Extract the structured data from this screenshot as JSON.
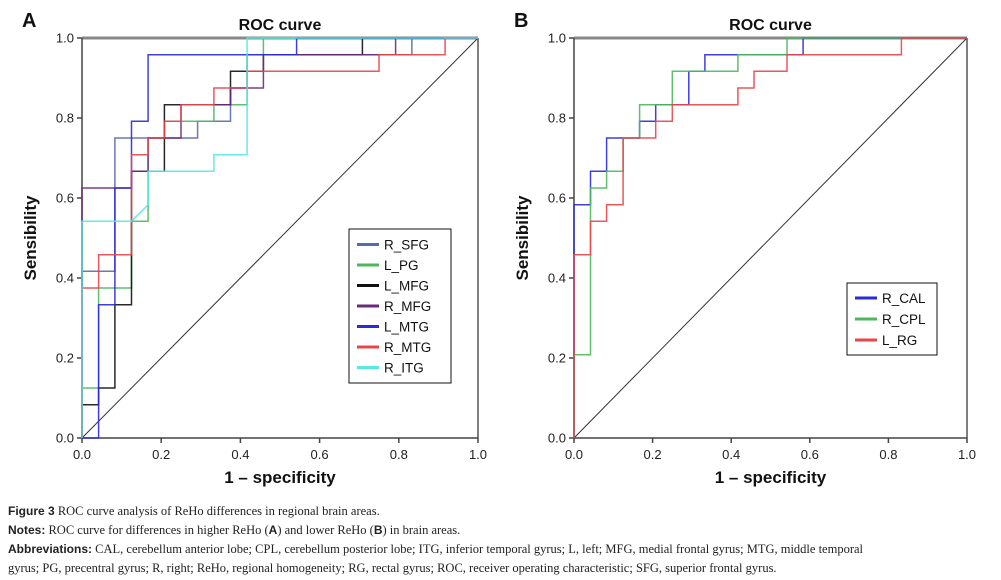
{
  "chart_data": [
    {
      "panel_label": "A",
      "type": "line",
      "title": "ROC curve",
      "xlabel": "1 – specificity",
      "ylabel": "Sensibility",
      "xlim": [
        0,
        1
      ],
      "ylim": [
        0,
        1
      ],
      "xticks": [
        "0.0",
        "0.2",
        "0.4",
        "0.6",
        "0.8",
        "1.0"
      ],
      "yticks": [
        "0.0",
        "0.2",
        "0.4",
        "0.6",
        "0.8",
        "1.0"
      ],
      "grid": false,
      "legend_position": "center-right",
      "reference_line": {
        "x": [
          0,
          1
        ],
        "y": [
          0,
          1
        ],
        "color": "#333333"
      },
      "series": [
        {
          "name": "R_SFG",
          "color": "#5b6aa8",
          "points": [
            [
              0,
              0
            ],
            [
              0,
              0.417
            ],
            [
              0.083,
              0.417
            ],
            [
              0.083,
              0.75
            ],
            [
              0.208,
              0.75
            ],
            [
              0.208,
              0.75
            ],
            [
              0.292,
              0.75
            ],
            [
              0.292,
              0.792
            ],
            [
              0.375,
              0.792
            ],
            [
              0.375,
              0.875
            ],
            [
              0.417,
              0.875
            ],
            [
              0.417,
              0.958
            ],
            [
              0.833,
              0.958
            ],
            [
              0.833,
              1
            ],
            [
              1,
              1
            ]
          ]
        },
        {
          "name": "L_PG",
          "color": "#4cb85c",
          "points": [
            [
              0,
              0
            ],
            [
              0,
              0.125
            ],
            [
              0.042,
              0.125
            ],
            [
              0.042,
              0.375
            ],
            [
              0.125,
              0.375
            ],
            [
              0.125,
              0.542
            ],
            [
              0.167,
              0.542
            ],
            [
              0.167,
              0.75
            ],
            [
              0.208,
              0.75
            ],
            [
              0.208,
              0.792
            ],
            [
              0.333,
              0.792
            ],
            [
              0.333,
              0.833
            ],
            [
              0.417,
              0.833
            ],
            [
              0.417,
              0.958
            ],
            [
              0.458,
              0.958
            ],
            [
              0.458,
              1
            ],
            [
              1,
              1
            ]
          ]
        },
        {
          "name": "L_MFG",
          "color": "#111111",
          "points": [
            [
              0,
              0
            ],
            [
              0,
              0.083
            ],
            [
              0.042,
              0.083
            ],
            [
              0.042,
              0.125
            ],
            [
              0.083,
              0.125
            ],
            [
              0.083,
              0.333
            ],
            [
              0.125,
              0.333
            ],
            [
              0.125,
              0.667
            ],
            [
              0.208,
              0.667
            ],
            [
              0.208,
              0.833
            ],
            [
              0.25,
              0.833
            ],
            [
              0.25,
              0.833
            ],
            [
              0.375,
              0.833
            ],
            [
              0.375,
              0.917
            ],
            [
              0.458,
              0.917
            ],
            [
              0.458,
              0.958
            ],
            [
              0.708,
              0.958
            ],
            [
              0.708,
              1
            ],
            [
              1,
              1
            ]
          ]
        },
        {
          "name": "R_MFG",
          "color": "#6a2a7a",
          "points": [
            [
              0,
              0
            ],
            [
              0,
              0.625
            ],
            [
              0.125,
              0.625
            ],
            [
              0.125,
              0.667
            ],
            [
              0.167,
              0.667
            ],
            [
              0.167,
              0.75
            ],
            [
              0.25,
              0.75
            ],
            [
              0.25,
              0.833
            ],
            [
              0.375,
              0.833
            ],
            [
              0.375,
              0.875
            ],
            [
              0.458,
              0.875
            ],
            [
              0.458,
              0.958
            ],
            [
              0.792,
              0.958
            ],
            [
              0.792,
              1
            ],
            [
              1,
              1
            ]
          ]
        },
        {
          "name": "L_MTG",
          "color": "#2a2ad8",
          "points": [
            [
              0,
              0
            ],
            [
              0.042,
              0
            ],
            [
              0.042,
              0.333
            ],
            [
              0.083,
              0.333
            ],
            [
              0.083,
              0.625
            ],
            [
              0.125,
              0.625
            ],
            [
              0.125,
              0.792
            ],
            [
              0.167,
              0.792
            ],
            [
              0.167,
              0.958
            ],
            [
              0.542,
              0.958
            ],
            [
              0.542,
              1
            ],
            [
              1,
              1
            ]
          ]
        },
        {
          "name": "R_MTG",
          "color": "#e8454a",
          "points": [
            [
              0,
              0
            ],
            [
              0,
              0.375
            ],
            [
              0.042,
              0.375
            ],
            [
              0.042,
              0.458
            ],
            [
              0.125,
              0.458
            ],
            [
              0.125,
              0.708
            ],
            [
              0.167,
              0.708
            ],
            [
              0.167,
              0.75
            ],
            [
              0.208,
              0.75
            ],
            [
              0.208,
              0.792
            ],
            [
              0.25,
              0.792
            ],
            [
              0.25,
              0.833
            ],
            [
              0.333,
              0.833
            ],
            [
              0.333,
              0.875
            ],
            [
              0.417,
              0.875
            ],
            [
              0.417,
              0.917
            ],
            [
              0.75,
              0.917
            ],
            [
              0.75,
              0.958
            ],
            [
              0.917,
              0.958
            ],
            [
              0.917,
              1
            ],
            [
              1,
              1
            ]
          ]
        },
        {
          "name": "R_ITG",
          "color": "#55e8e8",
          "points": [
            [
              0,
              0
            ],
            [
              0,
              0.542
            ],
            [
              0.125,
              0.542
            ],
            [
              0.167,
              0.583
            ],
            [
              0.167,
              0.667
            ],
            [
              0.333,
              0.667
            ],
            [
              0.333,
              0.708
            ],
            [
              0.417,
              0.708
            ],
            [
              0.417,
              1
            ],
            [
              1,
              1
            ]
          ]
        }
      ]
    },
    {
      "panel_label": "B",
      "type": "line",
      "title": "ROC curve",
      "xlabel": "1 – specificity",
      "ylabel": "Sensibility",
      "xlim": [
        0,
        1
      ],
      "ylim": [
        0,
        1
      ],
      "xticks": [
        "0.0",
        "0.2",
        "0.4",
        "0.6",
        "0.8",
        "1.0"
      ],
      "yticks": [
        "0.0",
        "0.2",
        "0.4",
        "0.6",
        "0.8",
        "1.0"
      ],
      "grid": false,
      "legend_position": "center-right",
      "reference_line": {
        "x": [
          0,
          1
        ],
        "y": [
          0,
          1
        ],
        "color": "#333333"
      },
      "series": [
        {
          "name": "R_CAL",
          "color": "#2a2ad8",
          "points": [
            [
              0,
              0
            ],
            [
              0,
              0.583
            ],
            [
              0.042,
              0.583
            ],
            [
              0.042,
              0.667
            ],
            [
              0.083,
              0.667
            ],
            [
              0.083,
              0.75
            ],
            [
              0.167,
              0.75
            ],
            [
              0.167,
              0.792
            ],
            [
              0.208,
              0.792
            ],
            [
              0.208,
              0.833
            ],
            [
              0.292,
              0.833
            ],
            [
              0.292,
              0.917
            ],
            [
              0.333,
              0.917
            ],
            [
              0.333,
              0.958
            ],
            [
              0.583,
              0.958
            ],
            [
              0.583,
              1
            ],
            [
              1,
              1
            ]
          ]
        },
        {
          "name": "R_CPL",
          "color": "#4cb85c",
          "points": [
            [
              0,
              0
            ],
            [
              0,
              0.208
            ],
            [
              0.042,
              0.208
            ],
            [
              0.042,
              0.625
            ],
            [
              0.083,
              0.625
            ],
            [
              0.083,
              0.667
            ],
            [
              0.125,
              0.667
            ],
            [
              0.125,
              0.75
            ],
            [
              0.167,
              0.75
            ],
            [
              0.167,
              0.833
            ],
            [
              0.25,
              0.833
            ],
            [
              0.25,
              0.917
            ],
            [
              0.417,
              0.917
            ],
            [
              0.417,
              0.958
            ],
            [
              0.542,
              0.958
            ],
            [
              0.542,
              1
            ],
            [
              1,
              1
            ]
          ]
        },
        {
          "name": "L_RG",
          "color": "#e8454a",
          "points": [
            [
              0,
              0
            ],
            [
              0,
              0.458
            ],
            [
              0.042,
              0.458
            ],
            [
              0.042,
              0.542
            ],
            [
              0.083,
              0.542
            ],
            [
              0.083,
              0.583
            ],
            [
              0.125,
              0.583
            ],
            [
              0.125,
              0.75
            ],
            [
              0.208,
              0.75
            ],
            [
              0.208,
              0.792
            ],
            [
              0.25,
              0.792
            ],
            [
              0.25,
              0.833
            ],
            [
              0.417,
              0.833
            ],
            [
              0.417,
              0.875
            ],
            [
              0.458,
              0.875
            ],
            [
              0.458,
              0.917
            ],
            [
              0.542,
              0.917
            ],
            [
              0.542,
              0.958
            ],
            [
              0.833,
              0.958
            ],
            [
              0.833,
              1
            ],
            [
              1,
              1
            ]
          ]
        }
      ]
    }
  ],
  "caption": {
    "figure_label": "Figure 3",
    "figure_text": " ROC curve analysis of ReHo differences in regional brain areas.",
    "notes_label": "Notes:",
    "notes_text_1": " ROC curve for differences in higher ReHo (",
    "notes_A": "A",
    "notes_text_2": ") and lower ReHo (",
    "notes_B": "B",
    "notes_text_3": ") in brain areas.",
    "abbr_label": "Abbreviations:",
    "abbr_text_line1": " CAL, cerebellum anterior lobe; CPL, cerebellum posterior lobe; ITG, inferior temporal gyrus; L, left; MFG, medial frontal gyrus; MTG, middle temporal",
    "abbr_text_line2": "gyrus; PG, precentral gyrus; R, right; ReHo, regional homogeneity; RG, rectal gyrus; ROC, receiver operating characteristic; SFG, superior frontal gyrus."
  }
}
